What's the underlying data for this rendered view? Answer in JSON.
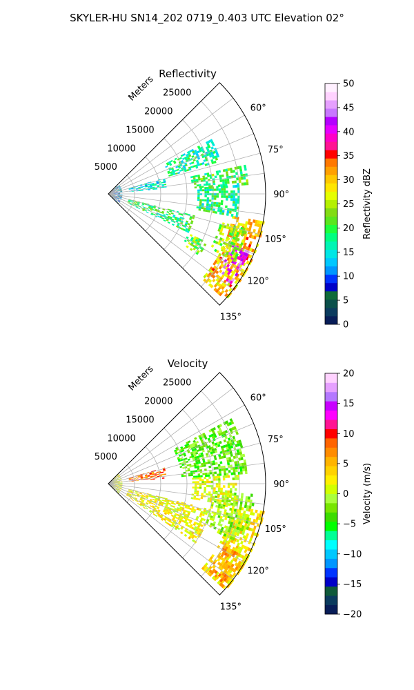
{
  "figure": {
    "title": "SKYLER-HU  SN14_202  0719_0.403 UTC Elevation 02°"
  },
  "chart_data": [
    {
      "type": "heatmap",
      "title": "Reflectivity",
      "projection": "polar-sector",
      "range_axis_label": "Meters",
      "range_ticks": [
        5000,
        10000,
        15000,
        20000,
        25000
      ],
      "range_tick_labels": [
        "5000",
        "10000",
        "15000",
        "20000",
        "25000"
      ],
      "range_max": 30000,
      "azimuth_range_deg": [
        45,
        135
      ],
      "azimuth_ticks": [
        60,
        75,
        90,
        105,
        120,
        135
      ],
      "azimuth_tick_labels": [
        "60°",
        "75°",
        "90°",
        "105°",
        "120°",
        "135°"
      ],
      "grid": true,
      "colorbar": {
        "label": "Reflectivity dBZ",
        "min": 0,
        "max": 50,
        "ticks": [
          0,
          5,
          10,
          15,
          20,
          25,
          30,
          35,
          40,
          45,
          50
        ],
        "tick_labels": [
          "0",
          "5",
          "10",
          "15",
          "20",
          "25",
          "30",
          "35",
          "40",
          "45",
          "50"
        ],
        "colors": [
          "#081d58",
          "#0b3b5e",
          "#0a4f4a",
          "#0f6a3a",
          "#0000c8",
          "#0034ff",
          "#0096ff",
          "#00c8ff",
          "#00e6e6",
          "#00f5b4",
          "#00ff80",
          "#1eff3c",
          "#5ae61e",
          "#82dc14",
          "#b4f000",
          "#e6ff00",
          "#ffe600",
          "#ffc800",
          "#ffa000",
          "#ff7800",
          "#ff0000",
          "#ff1493",
          "#ff00c8",
          "#e600ff",
          "#b400ff",
          "#c878ff",
          "#e6a0ff",
          "#ffd2ff",
          "#fff0ff"
        ]
      },
      "echo_regions": [
        {
          "az": [
            100,
            132
          ],
          "range_m": [
            24000,
            30000
          ],
          "value": 30
        },
        {
          "az": [
            112,
            126
          ],
          "range_m": [
            25500,
            29000
          ],
          "value": 42
        },
        {
          "az": [
            104,
            118
          ],
          "range_m": [
            22000,
            27000
          ],
          "value": 24
        },
        {
          "az": [
            78,
            86
          ],
          "range_m": [
            16000,
            26500
          ],
          "value": 20
        },
        {
          "az": [
            86,
            100
          ],
          "range_m": [
            17000,
            25000
          ],
          "value": 18
        },
        {
          "az": [
            62,
            74
          ],
          "range_m": [
            12000,
            22000
          ],
          "value": 17
        },
        {
          "az": [
            74,
            84
          ],
          "range_m": [
            4000,
            11000
          ],
          "value": 15
        },
        {
          "az": [
            104,
            116
          ],
          "range_m": [
            4000,
            17000
          ],
          "value": 19
        },
        {
          "az": [
            116,
            124
          ],
          "range_m": [
            17000,
            21000
          ],
          "value": 22
        },
        {
          "az": [
            45,
            135
          ],
          "range_m": [
            0,
            2500
          ],
          "value": 9
        }
      ]
    },
    {
      "type": "heatmap",
      "title": "Velocity",
      "projection": "polar-sector",
      "range_axis_label": "Meters",
      "range_ticks": [
        5000,
        10000,
        15000,
        20000,
        25000
      ],
      "range_tick_labels": [
        "5000",
        "10000",
        "15000",
        "20000",
        "25000"
      ],
      "range_max": 30000,
      "azimuth_range_deg": [
        45,
        135
      ],
      "azimuth_ticks": [
        60,
        75,
        90,
        105,
        120,
        135
      ],
      "azimuth_tick_labels": [
        "60°",
        "75°",
        "90°",
        "105°",
        "120°",
        "135°"
      ],
      "grid": true,
      "colorbar": {
        "label": "Velocity (m/s)",
        "min": -20,
        "max": 20,
        "ticks": [
          -20,
          -15,
          -10,
          -5,
          0,
          5,
          10,
          15,
          20
        ],
        "tick_labels": [
          "−20",
          "−15",
          "−10",
          "−5",
          "0",
          "5",
          "10",
          "15",
          "20"
        ],
        "colors": [
          "#081d58",
          "#0b3b5e",
          "#0f5a3a",
          "#0000c8",
          "#0034ff",
          "#0096ff",
          "#00c8ff",
          "#00ffff",
          "#00ff96",
          "#00ff00",
          "#3cdc00",
          "#78e600",
          "#aaff3c",
          "#d2ff00",
          "#fff000",
          "#ffd200",
          "#ffb400",
          "#ff8c00",
          "#ff6400",
          "#ff0000",
          "#ff1493",
          "#ff00ff",
          "#c800ff",
          "#b478ff",
          "#e6a0ff",
          "#ffd2ff"
        ]
      },
      "echo_regions": [
        {
          "az": [
            100,
            132
          ],
          "range_m": [
            24000,
            30000
          ],
          "value": 3
        },
        {
          "az": [
            118,
            132
          ],
          "range_m": [
            25000,
            29500
          ],
          "value": 6
        },
        {
          "az": [
            94,
            114
          ],
          "range_m": [
            20000,
            28000
          ],
          "value": -1
        },
        {
          "az": [
            62,
            86
          ],
          "range_m": [
            14000,
            26500
          ],
          "value": -3
        },
        {
          "az": [
            86,
            100
          ],
          "range_m": [
            16000,
            25000
          ],
          "value": 1
        },
        {
          "az": [
            74,
            84
          ],
          "range_m": [
            4000,
            11000
          ],
          "value": 8
        },
        {
          "az": [
            104,
            124
          ],
          "range_m": [
            4000,
            20000
          ],
          "value": 2
        },
        {
          "az": [
            45,
            135
          ],
          "range_m": [
            0,
            2500
          ],
          "value": 1
        }
      ]
    }
  ]
}
